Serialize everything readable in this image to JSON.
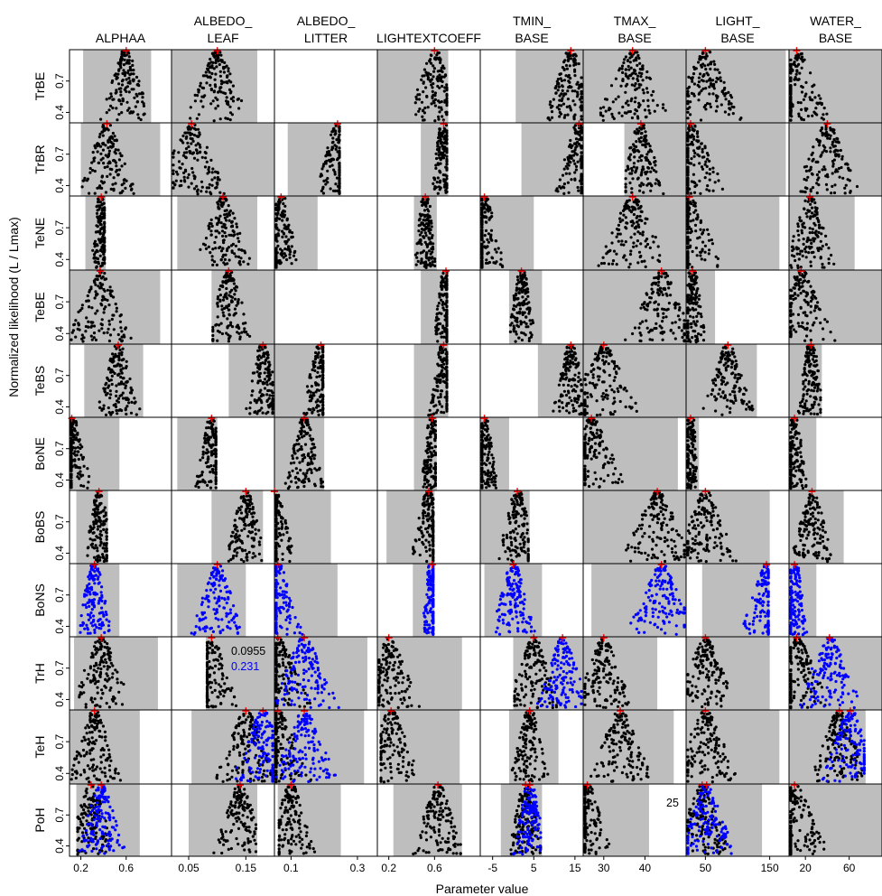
{
  "chart_data": {
    "type": "scatter",
    "xlabel": "Parameter value",
    "ylabel": "Normalized likelihood (L / Lmax)",
    "ylim": [
      0.3,
      1.0
    ],
    "y_ticks": [
      0.4,
      0.7
    ],
    "columns": [
      {
        "header": [
          "ALPHAA"
        ],
        "xlim": [
          0.1,
          1.0
        ],
        "x_ticks": [
          0.2,
          0.6
        ]
      },
      {
        "header": [
          "ALBEDO_",
          "LEAF"
        ],
        "xlim": [
          0.02,
          0.2
        ],
        "x_ticks": [
          0.05,
          0.15
        ]
      },
      {
        "header": [
          "ALBEDO_",
          "LITTER"
        ],
        "xlim": [
          0.05,
          0.36
        ],
        "x_ticks": [
          0.1,
          0.3
        ]
      },
      {
        "header": [
          "LIGHTEXTCOEFF"
        ],
        "xlim": [
          0.1,
          1.0
        ],
        "x_ticks": [
          0.2,
          0.6
        ]
      },
      {
        "header": [
          "TMIN_",
          "BASE"
        ],
        "xlim": [
          -8,
          17
        ],
        "x_ticks": [
          -5,
          5,
          15
        ]
      },
      {
        "header": [
          "TMAX_",
          "BASE"
        ],
        "xlim": [
          25,
          50
        ],
        "x_ticks": [
          30,
          40
        ]
      },
      {
        "header": [
          "LIGHT_",
          "BASE"
        ],
        "xlim": [
          20,
          180
        ],
        "x_ticks": [
          50,
          150
        ]
      },
      {
        "header": [
          "WATER_",
          "BASE"
        ],
        "xlim": [
          5,
          90
        ],
        "x_ticks": [
          20,
          60
        ]
      }
    ],
    "rows": [
      "TrBE",
      "TrBR",
      "TeNE",
      "TeBE",
      "TeBS",
      "BoNE",
      "BoBS",
      "BoNS",
      "TrH",
      "TeH",
      "PoH"
    ],
    "ranges": [
      [
        [
          0.22,
          0.82
        ],
        [
          0.02,
          0.17
        ],
        null,
        [
          0.1,
          0.72
        ],
        [
          0.6,
          17
        ],
        [
          25,
          50
        ],
        [
          20,
          175
        ],
        [
          5,
          90
        ]
      ],
      [
        [
          0.2,
          0.9
        ],
        [
          0.02,
          0.2
        ],
        [
          0.09,
          0.25
        ],
        [
          0.48,
          0.72
        ],
        [
          2,
          17
        ],
        [
          35,
          50
        ],
        [
          20,
          175
        ],
        [
          5,
          90
        ]
      ],
      [
        [
          0.24,
          0.42
        ],
        [
          0.03,
          0.17
        ],
        [
          0.05,
          0.18
        ],
        [
          0.42,
          0.62
        ],
        [
          -8,
          5
        ],
        [
          25,
          50
        ],
        [
          20,
          165
        ],
        [
          5,
          65
        ]
      ],
      [
        [
          0.1,
          0.9
        ],
        [
          0.09,
          0.2
        ],
        null,
        [
          0.48,
          0.72
        ],
        [
          -1,
          7
        ],
        [
          25,
          50
        ],
        [
          20,
          65
        ],
        [
          5,
          90
        ]
      ],
      [
        [
          0.23,
          0.75
        ],
        [
          0.12,
          0.2
        ],
        [
          0.05,
          0.2
        ],
        [
          0.42,
          0.72
        ],
        [
          6,
          17
        ],
        [
          25,
          50
        ],
        [
          20,
          130
        ],
        [
          5,
          35
        ]
      ],
      [
        [
          0.1,
          0.54
        ],
        [
          0.03,
          0.1
        ],
        [
          0.05,
          0.2
        ],
        [
          0.42,
          0.62
        ],
        [
          -8,
          -1
        ],
        [
          25,
          48
        ],
        [
          20,
          40
        ],
        [
          5,
          30
        ]
      ],
      [
        [
          0.16,
          0.44
        ],
        [
          0.09,
          0.18
        ],
        [
          0.05,
          0.22
        ],
        [
          0.18,
          0.6
        ],
        [
          -8,
          4
        ],
        [
          25,
          50
        ],
        [
          20,
          150
        ],
        [
          5,
          55
        ]
      ],
      [
        [
          0.16,
          0.54
        ],
        [
          0.03,
          0.15
        ],
        [
          0.05,
          0.24
        ],
        [
          0.41,
          0.6
        ],
        [
          -7,
          7
        ],
        [
          27,
          50
        ],
        [
          45,
          150
        ],
        [
          5,
          30
        ]
      ],
      [
        [
          0.14,
          0.88
        ],
        [
          0.08,
          0.2
        ],
        [
          0.05,
          0.33
        ],
        [
          0.1,
          0.84
        ],
        [
          0,
          17
        ],
        [
          25,
          43
        ],
        [
          20,
          150
        ],
        [
          5,
          90
        ]
      ],
      [
        [
          0.1,
          0.72
        ],
        [
          0.055,
          0.2
        ],
        [
          0.05,
          0.32
        ],
        [
          0.12,
          0.82
        ],
        [
          -1,
          11
        ],
        [
          25,
          47
        ],
        [
          20,
          165
        ],
        [
          5,
          75
        ]
      ],
      [
        [
          0.16,
          0.72
        ],
        [
          0.05,
          0.17
        ],
        [
          0.06,
          0.25
        ],
        [
          0.24,
          0.84
        ],
        [
          -3,
          7
        ],
        [
          25,
          41
        ],
        [
          20,
          138
        ],
        [
          5,
          90
        ]
      ]
    ],
    "series": [
      {
        "name": "",
        "color": "#000000"
      },
      {
        "name": "",
        "color": "#0000ff"
      }
    ],
    "marker_color": "#ff0000",
    "panel_fill": "#bebebe",
    "annotations": [
      {
        "row": 8,
        "col": 1,
        "lines": [
          {
            "text": "0.0955",
            "color": "#000000"
          },
          {
            "text": "0.231",
            "color": "#0000ff"
          }
        ]
      },
      {
        "row": 10,
        "col": 5,
        "lines": [
          {
            "text": "25",
            "color": "#000000"
          }
        ]
      }
    ],
    "optima": [
      [
        [
          0.6
        ],
        [
          0.1
        ],
        null,
        [
          0.6
        ],
        [
          14
        ],
        [
          37
        ],
        [
          50
        ],
        [
          12
        ]
      ],
      [
        [
          0.43
        ],
        [
          0.055
        ],
        [
          0.24
        ],
        [
          0.68
        ],
        [
          16
        ],
        [
          39
        ],
        [
          27
        ],
        [
          40
        ]
      ],
      [
        [
          0.38
        ],
        [
          0.11
        ],
        [
          0.07
        ],
        [
          0.52
        ],
        [
          -7
        ],
        [
          37
        ],
        [
          25
        ],
        [
          24
        ]
      ],
      [
        [
          0.37
        ],
        [
          0.12
        ],
        null,
        [
          0.7
        ],
        [
          2
        ],
        [
          44
        ],
        [
          30
        ],
        [
          16
        ]
      ],
      [
        [
          0.53
        ],
        [
          0.18
        ],
        [
          0.19
        ],
        [
          0.68
        ],
        [
          14
        ],
        [
          30
        ],
        [
          85
        ],
        [
          25
        ]
      ],
      [
        [
          0.12
        ],
        [
          0.09
        ],
        [
          0.14
        ],
        [
          0.58
        ],
        [
          -7
        ],
        [
          27
        ],
        [
          27
        ],
        [
          10
        ]
      ],
      [
        [
          0.36
        ],
        [
          0.15
        ],
        [
          0.05
        ],
        [
          0.55
        ],
        [
          1
        ],
        [
          43
        ],
        [
          50
        ],
        [
          26
        ]
      ],
      [
        [
          0.32
        ],
        [
          0.1
        ],
        [
          0.06
        ],
        [
          0.58
        ],
        [
          0
        ],
        [
          44
        ],
        [
          145
        ],
        [
          10
        ]
      ],
      [
        [
          0.38
        ],
        [
          0.09
        ],
        [
          0.06,
          0.14
        ],
        [
          0.2
        ],
        [
          5,
          12
        ],
        [
          30
        ],
        [
          50
        ],
        [
          12,
          42
        ]
      ],
      [
        [
          0.32
        ],
        [
          0.15,
          0.18
        ],
        [
          0.06,
          0.14
        ],
        [
          0.22
        ],
        [
          4
        ],
        [
          34
        ],
        [
          50
        ],
        [
          51,
          61
        ]
      ],
      [
        [
          0.29,
          0.38
        ],
        [
          0.14
        ],
        [
          0.1
        ],
        [
          0.63
        ],
        [
          3,
          4
        ],
        [
          26
        ],
        [
          45,
          52
        ],
        [
          10
        ]
      ]
    ]
  }
}
